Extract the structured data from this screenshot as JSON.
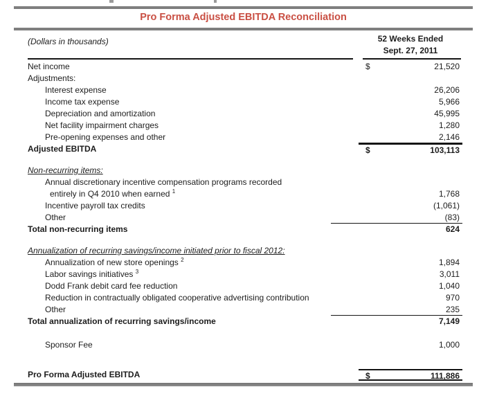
{
  "title": "Pro Forma Adjusted EBITDA Reconciliation",
  "colors": {
    "title_red": "#c94f43",
    "bar_gray": "#7f7f7f",
    "rule_black": "#141414",
    "text": "#1c1c1c"
  },
  "header": {
    "units_note": "(Dollars in thousands)",
    "period_line1": "52 Weeks Ended",
    "period_line2": "Sept. 27, 2011"
  },
  "table": {
    "rows": [
      {
        "label": "Net income",
        "dollar": "$",
        "value": "21,520",
        "indent": 0
      },
      {
        "label": "Adjustments:",
        "indent": 0
      },
      {
        "label": "Interest expense",
        "indent": 1,
        "value": "26,206"
      },
      {
        "label": "Income tax expense",
        "indent": 1,
        "value": "5,966"
      },
      {
        "label": "Depreciation and amortization",
        "indent": 1,
        "value": "45,995"
      },
      {
        "label": "Net facility impairment charges",
        "indent": 1,
        "value": "1,280"
      },
      {
        "label": "Pre-opening expenses and other",
        "indent": 1,
        "value": "2,146",
        "rule": "bottom"
      },
      {
        "label": "Adjusted EBITDA",
        "bold": true,
        "dollar": "$",
        "value": "103,113",
        "rule": "top"
      },
      {
        "type": "spacer",
        "h": 14
      },
      {
        "label": "Non-recurring items:",
        "italic": true,
        "underline": true,
        "indent": 0
      },
      {
        "label": "Annual discretionary incentive compensation programs recorded",
        "indent": 1
      },
      {
        "label": "entirely in Q4 2010 when earned",
        "sup": "1",
        "indent": 2,
        "value": "1,768"
      },
      {
        "label": "Incentive payroll tax credits",
        "indent": 1,
        "value": "(1,061)"
      },
      {
        "label": "Other",
        "indent": 1,
        "value": "(83)",
        "rule": "bottom",
        "wide": true
      },
      {
        "label": "Total non-recurring items",
        "bold": true,
        "indent": 0,
        "value": "624"
      },
      {
        "type": "spacer",
        "h": 14
      },
      {
        "label": "Annualization of recurring savings/income initiated prior to fiscal 2012:",
        "italic": true,
        "underline": true,
        "indent": 0
      },
      {
        "label": "Annualization of new store openings",
        "sup": "2",
        "indent": 1,
        "value": "1,894"
      },
      {
        "label": "Labor savings initiatives",
        "sup": "3",
        "indent": 1,
        "value": "3,011"
      },
      {
        "label": "Dodd Frank debit card fee reduction",
        "indent": 1,
        "value": "1,040"
      },
      {
        "label": "Reduction in contractually obligated cooperative advertising contribution",
        "indent": 1,
        "value": "970"
      },
      {
        "label": "Other",
        "indent": 1,
        "value": "235",
        "rule": "bottom",
        "wide": true
      },
      {
        "label": "Total annualization of recurring savings/income",
        "bold": true,
        "indent": 0,
        "value": "7,149"
      },
      {
        "type": "spacer",
        "h": 17
      },
      {
        "label": "Sponsor Fee",
        "indent": 1,
        "value": "1,000"
      },
      {
        "type": "spacer",
        "h": 26
      },
      {
        "label": "Pro Forma Adjusted EBITDA",
        "bold": true,
        "indent": 0,
        "dollar": "$",
        "value": "111,886",
        "rule": "both"
      }
    ]
  }
}
